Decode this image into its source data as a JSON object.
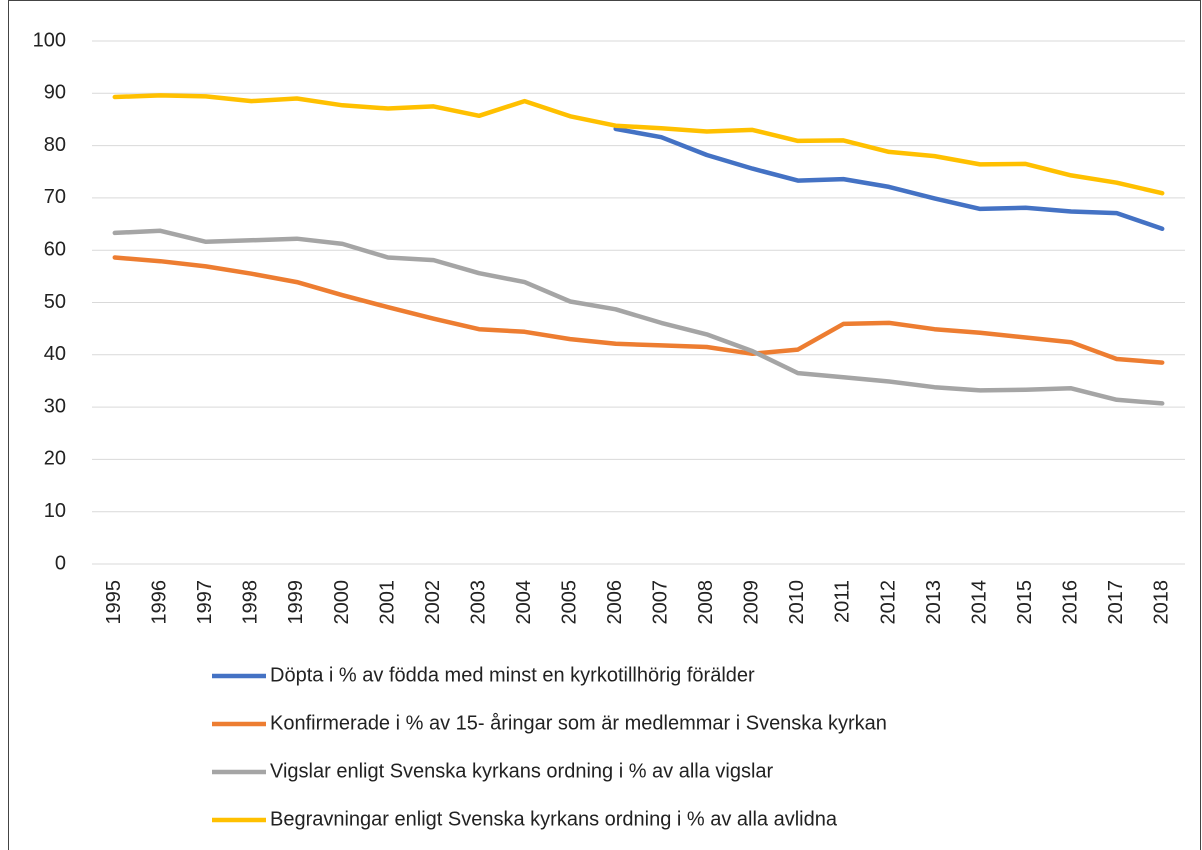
{
  "chart_data": {
    "type": "line",
    "categories": [
      "1995",
      "1996",
      "1997",
      "1998",
      "1999",
      "2000",
      "2001",
      "2002",
      "2003",
      "2004",
      "2005",
      "2006",
      "2007",
      "2008",
      "2009",
      "2010",
      "2011",
      "2012",
      "2013",
      "2014",
      "2015",
      "2016",
      "2017",
      "2018"
    ],
    "series": [
      {
        "name": "Döpta i % av födda med minst en kyrkotillhörig förälder",
        "color": "#4472c4",
        "values": [
          null,
          null,
          null,
          null,
          null,
          null,
          null,
          null,
          null,
          null,
          null,
          83.2,
          81.6,
          78.2,
          75.6,
          73.3,
          73.6,
          72.1,
          69.9,
          67.9,
          68.1,
          67.4,
          67.1,
          64.1
        ]
      },
      {
        "name": "Konfirmerade i % av 15- åringar som är medlemmar i Svenska kyrkan",
        "color": "#ed7d31",
        "values": [
          58.6,
          57.9,
          56.9,
          55.5,
          53.9,
          51.4,
          49.1,
          46.9,
          44.9,
          44.4,
          43.0,
          42.1,
          41.8,
          41.5,
          40.2,
          41.0,
          45.9,
          46.1,
          44.9,
          44.2,
          43.3,
          42.4,
          39.2,
          38.5
        ]
      },
      {
        "name": "Vigslar enligt Svenska kyrkans ordning i % av alla vigslar",
        "color": "#a5a5a5",
        "values": [
          63.3,
          63.7,
          61.6,
          61.9,
          62.2,
          61.2,
          58.6,
          58.1,
          55.6,
          53.9,
          50.2,
          48.7,
          46.1,
          43.9,
          40.7,
          36.5,
          35.7,
          34.9,
          33.8,
          33.2,
          33.3,
          33.6,
          31.4,
          30.7
        ]
      },
      {
        "name": "Begravningar enligt Svenska kyrkans ordning i % av alla avlidna",
        "color": "#ffc000",
        "values": [
          89.3,
          89.6,
          89.4,
          88.5,
          89.0,
          87.7,
          87.1,
          87.5,
          85.7,
          88.5,
          85.6,
          83.8,
          83.3,
          82.7,
          83.0,
          80.9,
          81.0,
          78.8,
          78.0,
          76.4,
          76.5,
          74.3,
          72.9,
          70.9
        ]
      }
    ],
    "ylim": [
      0,
      100
    ],
    "yticks": [
      0,
      10,
      20,
      30,
      40,
      50,
      60,
      70,
      80,
      90,
      100
    ],
    "grid": true,
    "legend": "bottom"
  }
}
